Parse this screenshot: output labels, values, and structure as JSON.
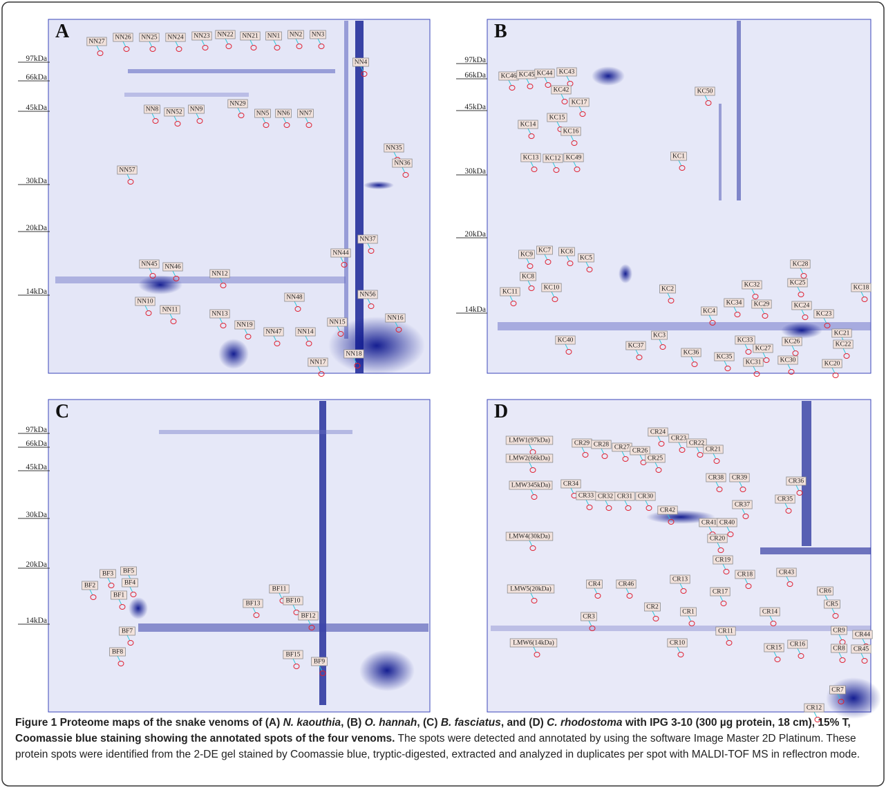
{
  "panels": [
    {
      "letter": "A",
      "markers": [
        "97kDa",
        "66kDa",
        "45kDa",
        "30kDa",
        "20kDa",
        "14kDa"
      ],
      "spots": [
        "NN27",
        "NN26",
        "NN25",
        "NN24",
        "NN23",
        "NN22",
        "NN21",
        "NN1",
        "NN2",
        "NN3",
        "NN4",
        "NN8",
        "NN52",
        "NN9",
        "NN29",
        "NN5",
        "NN6",
        "NN7",
        "NN35",
        "NN36",
        "NN57",
        "NN37",
        "NN44",
        "NN45",
        "NN46",
        "NN12",
        "NN10",
        "NN11",
        "NN13",
        "NN48",
        "NN56",
        "NN15",
        "NN16",
        "NN19",
        "NN47",
        "NN14",
        "NN17",
        "NN18"
      ]
    },
    {
      "letter": "B",
      "markers": [
        "97kDa",
        "66kDa",
        "45kDa",
        "30kDa",
        "20kDa",
        "14kDa"
      ],
      "spots": [
        "KC46",
        "KC45",
        "KC44",
        "KC43",
        "KC42",
        "KC17",
        "KC15",
        "KC14",
        "KC16",
        "KC13",
        "KC12",
        "KC49",
        "KC50",
        "KC1",
        "KC9",
        "KC7",
        "KC6",
        "KC5",
        "KC8",
        "KC10",
        "KC11",
        "KC2",
        "KC28",
        "KC25",
        "KC32",
        "KC18",
        "KC34",
        "KC29",
        "KC24",
        "KC4",
        "KC23",
        "KC40",
        "KC3",
        "KC33",
        "KC21",
        "KC27",
        "KC26",
        "KC22",
        "KC37",
        "KC36",
        "KC35",
        "KC30",
        "KC31",
        "KC20"
      ]
    },
    {
      "letter": "C",
      "markers": [
        "97kDa",
        "66kDa",
        "45kDa",
        "30kDa",
        "20kDa",
        "14kDa"
      ],
      "spots": [
        "BF3",
        "BF5",
        "BF2",
        "BF4",
        "BF1",
        "BF7",
        "BF8",
        "BF11",
        "BF13",
        "BF10",
        "BF12",
        "BF15",
        "BF9"
      ]
    },
    {
      "letter": "D",
      "markers": [],
      "spots": [
        "LMW1(97kDa)",
        "LMW2(66kDa)",
        "LMW345kDa)",
        "LMW4(30kDa)",
        "LMW5(20kDa)",
        "LMW6(14kDa)",
        "CR24",
        "CR23",
        "CR22",
        "CR21",
        "CR29",
        "CR28",
        "CR27",
        "CR26",
        "CR25",
        "CR38",
        "CR39",
        "CR36",
        "CR34",
        "CR33",
        "CR32",
        "CR31",
        "CR30",
        "CR35",
        "CR37",
        "CR42",
        "CR41",
        "CR40",
        "CR20",
        "CR19",
        "CR18",
        "CR13",
        "CR43",
        "CR17",
        "CR4",
        "CR46",
        "CR6",
        "CR2",
        "CR1",
        "CR5",
        "CR14",
        "CR3",
        "CR11",
        "CR9",
        "CR44",
        "CR10",
        "CR15",
        "CR16",
        "CR8",
        "CR45",
        "CR7",
        "CR12"
      ]
    }
  ],
  "caption": [
    {
      "text": "Figure 1 Proteome maps of the snake venoms of (A) ",
      "style": "bold"
    },
    {
      "text": "N. kaouthia",
      "style": "bold-italic"
    },
    {
      "text": ", (B) ",
      "style": "bold"
    },
    {
      "text": "O. hannah",
      "style": "bold-italic"
    },
    {
      "text": ", (C) ",
      "style": "bold"
    },
    {
      "text": "B. fasciatus",
      "style": "bold-italic"
    },
    {
      "text": ", and (D) ",
      "style": "bold"
    },
    {
      "text": "C. rhodostoma",
      "style": "bold-italic"
    },
    {
      "text": " with IPG 3-10 (300 µg protein, 18 cm), 15% T, Coomassie blue staining showing the annotated spots of the four venoms.",
      "style": "bold"
    },
    {
      "text": " The spots were detected and annotated by using the software Image Master 2D Platinum. These protein spots were identified from the 2-DE gel stained by Coomassie blue, tryptic-digested, extracted and analyzed in duplicates per spot with MALDI-TOF MS in reflectron mode.",
      "style": "regular"
    }
  ]
}
